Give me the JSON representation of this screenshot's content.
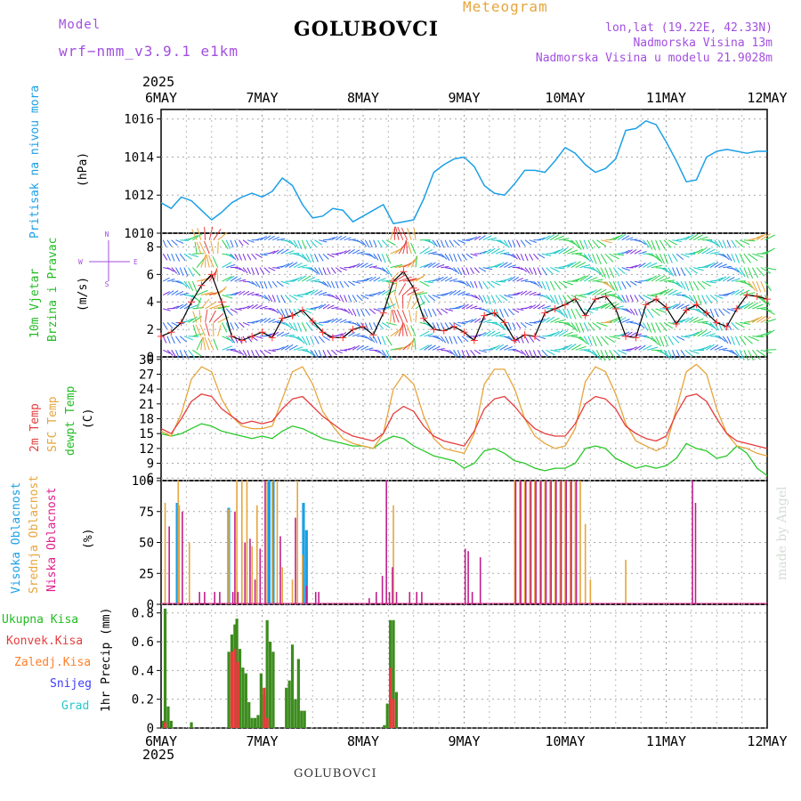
{
  "header": {
    "model_label": "Model",
    "model_name": "wrf−nmm_v3.9.1  e1km",
    "title": "GOLUBOVCI",
    "meteogram": "Meteogram",
    "lonlat": "lon,lat (19.22E, 42.33N)",
    "elevation": "Nadmorska Visina 13m",
    "model_elevation": "Nadmorska Visina u modelu 21.9028m",
    "year_top": "2025",
    "year_bottom": "2025",
    "footer_station": "GOLUBOVCI",
    "credit": "made by Angel"
  },
  "days": [
    "6MAY",
    "7MAY",
    "8MAY",
    "9MAY",
    "10MAY",
    "11MAY",
    "12MAY"
  ],
  "colors": {
    "pressure": "#1ca0e6",
    "temp2m": "#e63c3c",
    "sfc": "#e6a53c",
    "dewpt": "#28c828",
    "wind_speed": "#000000",
    "wind_obs_marker": "#ff3030",
    "cloud_high": "#1ca0e6",
    "cloud_mid": "#e6a53c",
    "cloud_low": "#c0208c",
    "precip_total": "#3c8c1e",
    "precip_conv": "#e63c3c",
    "precip_frozen": "#ff7f28",
    "precip_snow": "#3c3cff",
    "precip_graupel": "#28c8c8",
    "label_purple": "#a24fe0",
    "label_blue": "#1ca0e6",
    "label_green": "#22bb22",
    "label_red": "#e63c3c",
    "label_orange": "#e6a53c",
    "label_magenta": "#e0208c"
  },
  "panels": {
    "pressure": {
      "label": "Pritisak na nivou mora",
      "unit": "(hPa)"
    },
    "wind": {
      "label_line1": "10m Vjetar",
      "label_line2": "Brzina i Pravac",
      "unit": "(m/s)",
      "compass": [
        "N",
        "W",
        "E",
        "S"
      ]
    },
    "temp": {
      "label_2m": "2m Temp",
      "label_sfc": "SFC Temp",
      "label_dew": "dewpt Temp",
      "unit": "(C)"
    },
    "cloud": {
      "label_high": "Visoka Oblacnost",
      "label_mid": "Srednja Oblacnost",
      "label_low": "Niska Oblacnost",
      "unit": "(%)"
    },
    "precip": {
      "label_total": "Ukupna Kisa",
      "label_conv": "Konvek.Kisa",
      "label_frozen": "Zaledj.Kisa",
      "label_snow": "Snijeg",
      "label_graupel": "Grad",
      "unit": "1hr Precip (mm)"
    }
  },
  "chart_data": [
    {
      "type": "line",
      "name": "pressure",
      "x_unit": "days from 6MAY 00h",
      "ylim": [
        1010,
        1016.5
      ],
      "yticks": [
        "1010",
        "1012",
        "1014",
        "1016"
      ],
      "grid": true,
      "series": [
        {
          "name": "Pritisak na nivou mora",
          "x": [
            0,
            0.1,
            0.2,
            0.3,
            0.4,
            0.5,
            0.6,
            0.7,
            0.8,
            0.9,
            1,
            1.1,
            1.2,
            1.3,
            1.4,
            1.5,
            1.6,
            1.7,
            1.8,
            1.9,
            2,
            2.1,
            2.2,
            2.3,
            2.4,
            2.5,
            2.6,
            2.7,
            2.8,
            2.9,
            3,
            3.1,
            3.2,
            3.3,
            3.4,
            3.5,
            3.6,
            3.7,
            3.8,
            3.9,
            4,
            4.1,
            4.2,
            4.3,
            4.4,
            4.5,
            4.6,
            4.7,
            4.8,
            4.9,
            5,
            5.1,
            5.2,
            5.3,
            5.4,
            5.5,
            5.6,
            5.7,
            5.8,
            5.9,
            6
          ],
          "values": [
            1011.6,
            1011.3,
            1011.9,
            1011.7,
            1011.2,
            1010.7,
            1011.1,
            1011.6,
            1011.9,
            1012.1,
            1011.9,
            1012.2,
            1012.9,
            1012.5,
            1011.5,
            1010.8,
            1010.9,
            1011.3,
            1011.2,
            1010.6,
            1010.9,
            1011.2,
            1011.5,
            1010.5,
            1010.6,
            1010.7,
            1011.8,
            1013.2,
            1013.6,
            1013.9,
            1014.0,
            1013.5,
            1012.5,
            1012.1,
            1012.0,
            1012.6,
            1013.3,
            1013.3,
            1013.2,
            1013.8,
            1014.5,
            1014.2,
            1013.6,
            1013.2,
            1013.4,
            1013.9,
            1015.4,
            1015.5,
            1015.9,
            1015.7,
            1014.8,
            1013.8,
            1012.7,
            1012.8,
            1014.0,
            1014.3,
            1014.4,
            1014.3,
            1014.2,
            1014.3,
            1014.3
          ]
        }
      ]
    },
    {
      "type": "line",
      "name": "wind",
      "x_unit": "days from 6MAY 00h",
      "ylim": [
        0,
        9
      ],
      "yticks": [
        "0",
        "2",
        "4",
        "6",
        "8"
      ],
      "grid": true,
      "barbs": "wind direction arrows, color by speed (purple/blue/teal/green/orange/red)",
      "series": [
        {
          "name": "10m wind speed",
          "x": [
            0,
            0.1,
            0.2,
            0.3,
            0.4,
            0.5,
            0.6,
            0.7,
            0.8,
            0.9,
            1,
            1.1,
            1.2,
            1.3,
            1.4,
            1.5,
            1.6,
            1.7,
            1.8,
            1.9,
            2,
            2.1,
            2.2,
            2.3,
            2.4,
            2.5,
            2.6,
            2.7,
            2.8,
            2.9,
            3,
            3.1,
            3.2,
            3.3,
            3.4,
            3.5,
            3.6,
            3.7,
            3.8,
            3.9,
            4,
            4.1,
            4.2,
            4.3,
            4.4,
            4.5,
            4.6,
            4.7,
            4.8,
            4.9,
            5,
            5.1,
            5.2,
            5.3,
            5.4,
            5.5,
            5.6,
            5.7,
            5.8,
            5.9,
            6
          ],
          "values": [
            1.5,
            1.8,
            2.5,
            4.0,
            5.2,
            6.0,
            4.0,
            1.5,
            1.2,
            1.5,
            1.8,
            1.4,
            2.8,
            3.0,
            3.4,
            2.6,
            1.8,
            1.4,
            1.4,
            2.0,
            2.2,
            1.6,
            3.2,
            5.5,
            6.2,
            5.0,
            2.8,
            2.0,
            1.9,
            2.2,
            1.8,
            1.2,
            3.0,
            3.2,
            2.5,
            1.2,
            1.6,
            1.5,
            3.2,
            3.5,
            3.8,
            4.2,
            3.0,
            4.2,
            4.4,
            3.5,
            1.5,
            1.4,
            3.8,
            4.2,
            3.6,
            2.4,
            3.4,
            3.8,
            3.2,
            2.5,
            2.2,
            3.5,
            4.5,
            4.4,
            4.2
          ]
        }
      ]
    },
    {
      "type": "line",
      "name": "temperature",
      "x_unit": "days from 6MAY 00h",
      "ylim": [
        5.5,
        30.5
      ],
      "yticks": [
        "6",
        "9",
        "12",
        "15",
        "18",
        "21",
        "24",
        "27",
        "30"
      ],
      "grid": true,
      "series": [
        {
          "name": "2m Temp",
          "x": [
            0,
            0.1,
            0.2,
            0.3,
            0.4,
            0.5,
            0.6,
            0.7,
            0.8,
            0.9,
            1,
            1.1,
            1.2,
            1.3,
            1.4,
            1.5,
            1.6,
            1.7,
            1.8,
            1.9,
            2,
            2.1,
            2.2,
            2.3,
            2.4,
            2.5,
            2.6,
            2.7,
            2.8,
            2.9,
            3,
            3.1,
            3.2,
            3.3,
            3.4,
            3.5,
            3.6,
            3.7,
            3.8,
            3.9,
            4,
            4.1,
            4.2,
            4.3,
            4.4,
            4.5,
            4.6,
            4.7,
            4.8,
            4.9,
            5,
            5.1,
            5.2,
            5.3,
            5.4,
            5.5,
            5.6,
            5.7,
            5.8,
            5.9,
            6
          ],
          "values": [
            16.0,
            15.0,
            18.0,
            21.5,
            23.0,
            22.5,
            20.0,
            18.5,
            17.0,
            17.5,
            17.0,
            17.5,
            20.0,
            22.0,
            22.5,
            20.5,
            18.5,
            17.0,
            15.5,
            14.5,
            14.0,
            13.5,
            15.0,
            19.0,
            20.5,
            19.5,
            16.5,
            14.5,
            13.5,
            13.0,
            12.5,
            15.5,
            20.0,
            22.0,
            22.5,
            20.5,
            18.0,
            16.0,
            15.0,
            14.5,
            14.5,
            17.0,
            21.0,
            22.5,
            22.0,
            20.0,
            16.5,
            15.0,
            14.0,
            13.5,
            14.5,
            19.0,
            22.5,
            23.0,
            21.5,
            18.0,
            15.0,
            13.5,
            13.0,
            12.5,
            12.0
          ]
        },
        {
          "name": "SFC Temp",
          "x": [
            0,
            0.1,
            0.2,
            0.3,
            0.4,
            0.5,
            0.6,
            0.7,
            0.8,
            0.9,
            1,
            1.1,
            1.2,
            1.3,
            1.4,
            1.5,
            1.6,
            1.7,
            1.8,
            1.9,
            2,
            2.1,
            2.2,
            2.3,
            2.4,
            2.5,
            2.6,
            2.7,
            2.8,
            2.9,
            3,
            3.1,
            3.2,
            3.3,
            3.4,
            3.5,
            3.6,
            3.7,
            3.8,
            3.9,
            4,
            4.1,
            4.2,
            4.3,
            4.4,
            4.5,
            4.6,
            4.7,
            4.8,
            4.9,
            5,
            5.1,
            5.2,
            5.3,
            5.4,
            5.5,
            5.6,
            5.7,
            5.8,
            5.9,
            6
          ],
          "values": [
            15.5,
            14.5,
            19.0,
            26.0,
            28.5,
            27.5,
            22.0,
            18.5,
            16.5,
            16.0,
            16.0,
            16.5,
            22.0,
            27.5,
            28.5,
            25.0,
            19.5,
            16.5,
            14.0,
            13.0,
            12.5,
            12.0,
            15.0,
            24.0,
            27.0,
            25.0,
            18.5,
            14.0,
            12.0,
            11.5,
            11.0,
            15.0,
            25.0,
            28.0,
            28.0,
            24.0,
            18.0,
            14.5,
            13.0,
            12.0,
            12.5,
            16.0,
            25.5,
            28.5,
            27.5,
            23.0,
            17.0,
            13.5,
            12.5,
            11.5,
            12.5,
            20.0,
            27.5,
            29.0,
            27.0,
            20.0,
            15.0,
            12.5,
            12.0,
            11.0,
            10.5
          ]
        },
        {
          "name": "dewpt Temp",
          "x": [
            0,
            0.1,
            0.2,
            0.3,
            0.4,
            0.5,
            0.6,
            0.7,
            0.8,
            0.9,
            1,
            1.1,
            1.2,
            1.3,
            1.4,
            1.5,
            1.6,
            1.7,
            1.8,
            1.9,
            2,
            2.1,
            2.2,
            2.3,
            2.4,
            2.5,
            2.6,
            2.7,
            2.8,
            2.9,
            3,
            3.1,
            3.2,
            3.3,
            3.4,
            3.5,
            3.6,
            3.7,
            3.8,
            3.9,
            4,
            4.1,
            4.2,
            4.3,
            4.4,
            4.5,
            4.6,
            4.7,
            4.8,
            4.9,
            5,
            5.1,
            5.2,
            5.3,
            5.4,
            5.5,
            5.6,
            5.7,
            5.8,
            5.9,
            6
          ],
          "values": [
            15.0,
            14.5,
            15.0,
            16.0,
            17.0,
            16.5,
            15.5,
            15.0,
            14.5,
            14.0,
            14.5,
            14.0,
            15.5,
            16.5,
            16.0,
            15.0,
            14.0,
            13.5,
            13.0,
            12.5,
            12.5,
            12.0,
            13.5,
            14.5,
            14.0,
            12.5,
            11.5,
            10.5,
            10.0,
            9.5,
            8.0,
            9.0,
            11.5,
            12.0,
            11.0,
            9.5,
            9.0,
            8.0,
            7.5,
            8.0,
            8.0,
            9.0,
            12.0,
            12.5,
            12.0,
            10.0,
            9.0,
            8.0,
            8.5,
            8.0,
            8.5,
            10.0,
            13.0,
            12.0,
            11.5,
            10.0,
            10.5,
            12.5,
            11.0,
            8.0,
            6.5
          ]
        }
      ]
    },
    {
      "type": "bar",
      "name": "cloud",
      "x_unit": "days from 6MAY 00h",
      "ylim": [
        0,
        100
      ],
      "yticks": [
        "0",
        "25",
        "50",
        "75",
        "100"
      ],
      "grid": true,
      "series": [
        {
          "name": "Visoka Oblacnost",
          "x": [
            0.17,
            0.68,
            1.07,
            1.08,
            1.12,
            1.42,
            1.45
          ],
          "values": [
            82,
            78,
            77,
            100,
            100,
            82,
            60
          ]
        },
        {
          "name": "Srednja Oblacnost",
          "x": [
            0.04,
            0.17,
            0.18,
            0.28,
            0.67,
            0.75,
            0.8,
            0.85,
            0.9,
            0.95,
            1.05,
            1.1,
            1.15,
            1.2,
            1.3,
            1.35,
            1.4,
            2.3,
            3.5,
            3.55,
            3.6,
            3.65,
            3.7,
            3.75,
            3.8,
            3.85,
            3.9,
            3.95,
            4.0,
            4.05,
            4.1,
            4.15,
            4.2,
            4.25,
            4.6
          ],
          "values": [
            82,
            100,
            80,
            50,
            77,
            100,
            100,
            100,
            47,
            80,
            100,
            100,
            100,
            30,
            20,
            100,
            40,
            80,
            100,
            100,
            100,
            100,
            100,
            100,
            100,
            100,
            100,
            100,
            100,
            100,
            100,
            100,
            65,
            20,
            36
          ]
        },
        {
          "name": "Niska Oblacnost",
          "x": [
            0.07,
            0.2,
            0.37,
            0.42,
            0.52,
            0.57,
            0.7,
            0.72,
            0.75,
            0.82,
            0.87,
            0.92,
            0.97,
            1.02,
            1.17,
            1.32,
            1.43,
            1.52,
            1.55,
            2.05,
            2.12,
            2.18,
            2.22,
            2.25,
            2.28,
            2.32,
            2.45,
            2.52,
            2.57,
            3.0,
            3.03,
            3.07,
            3.15,
            3.5,
            3.55,
            3.6,
            3.65,
            3.7,
            3.75,
            3.8,
            3.85,
            3.9,
            3.95,
            4.0,
            4.05,
            4.1,
            5.25,
            5.28
          ],
          "values": [
            63,
            75,
            10,
            10,
            10,
            10,
            10,
            75,
            10,
            50,
            53,
            20,
            45,
            100,
            55,
            70,
            15,
            10,
            10,
            5,
            10,
            23,
            100,
            10,
            30,
            10,
            10,
            10,
            10,
            45,
            43,
            10,
            38,
            100,
            100,
            100,
            100,
            100,
            100,
            100,
            100,
            100,
            100,
            100,
            100,
            100,
            100,
            82
          ]
        }
      ]
    },
    {
      "type": "bar",
      "name": "precip",
      "x_unit": "days from 6MAY 00h",
      "ylim": [
        0,
        0.86
      ],
      "yticks": [
        "0",
        "0.2",
        "0.4",
        "0.6",
        "0.8"
      ],
      "grid": true,
      "series": [
        {
          "name": "Ukupna Kisa",
          "x": [
            0.02,
            0.04,
            0.07,
            0.1,
            0.3,
            0.67,
            0.7,
            0.73,
            0.75,
            0.78,
            0.81,
            0.84,
            0.87,
            0.9,
            0.93,
            0.96,
            0.99,
            1.02,
            1.05,
            1.08,
            1.11,
            1.24,
            1.27,
            1.3,
            1.33,
            1.36,
            1.39,
            1.42,
            2.21,
            2.24,
            2.27,
            2.3,
            2.33
          ],
          "values": [
            0.05,
            0.83,
            0.15,
            0.05,
            0.04,
            0.53,
            0.65,
            0.72,
            0.76,
            0.55,
            0.42,
            0.38,
            0.18,
            0.07,
            0.07,
            0.09,
            0.38,
            0.23,
            0.75,
            0.6,
            0.53,
            0.28,
            0.33,
            0.58,
            0.2,
            0.48,
            0.12,
            0.12,
            0.02,
            0.17,
            0.75,
            0.75,
            0.25
          ]
        },
        {
          "name": "Konvek.Kisa",
          "x": [
            0.04,
            0.7,
            0.73,
            0.76,
            1.02,
            1.05,
            2.27,
            2.3
          ],
          "values": [
            0.04,
            0.53,
            0.55,
            0.46,
            0.28,
            0.07,
            0.42,
            0.2
          ]
        }
      ]
    }
  ]
}
